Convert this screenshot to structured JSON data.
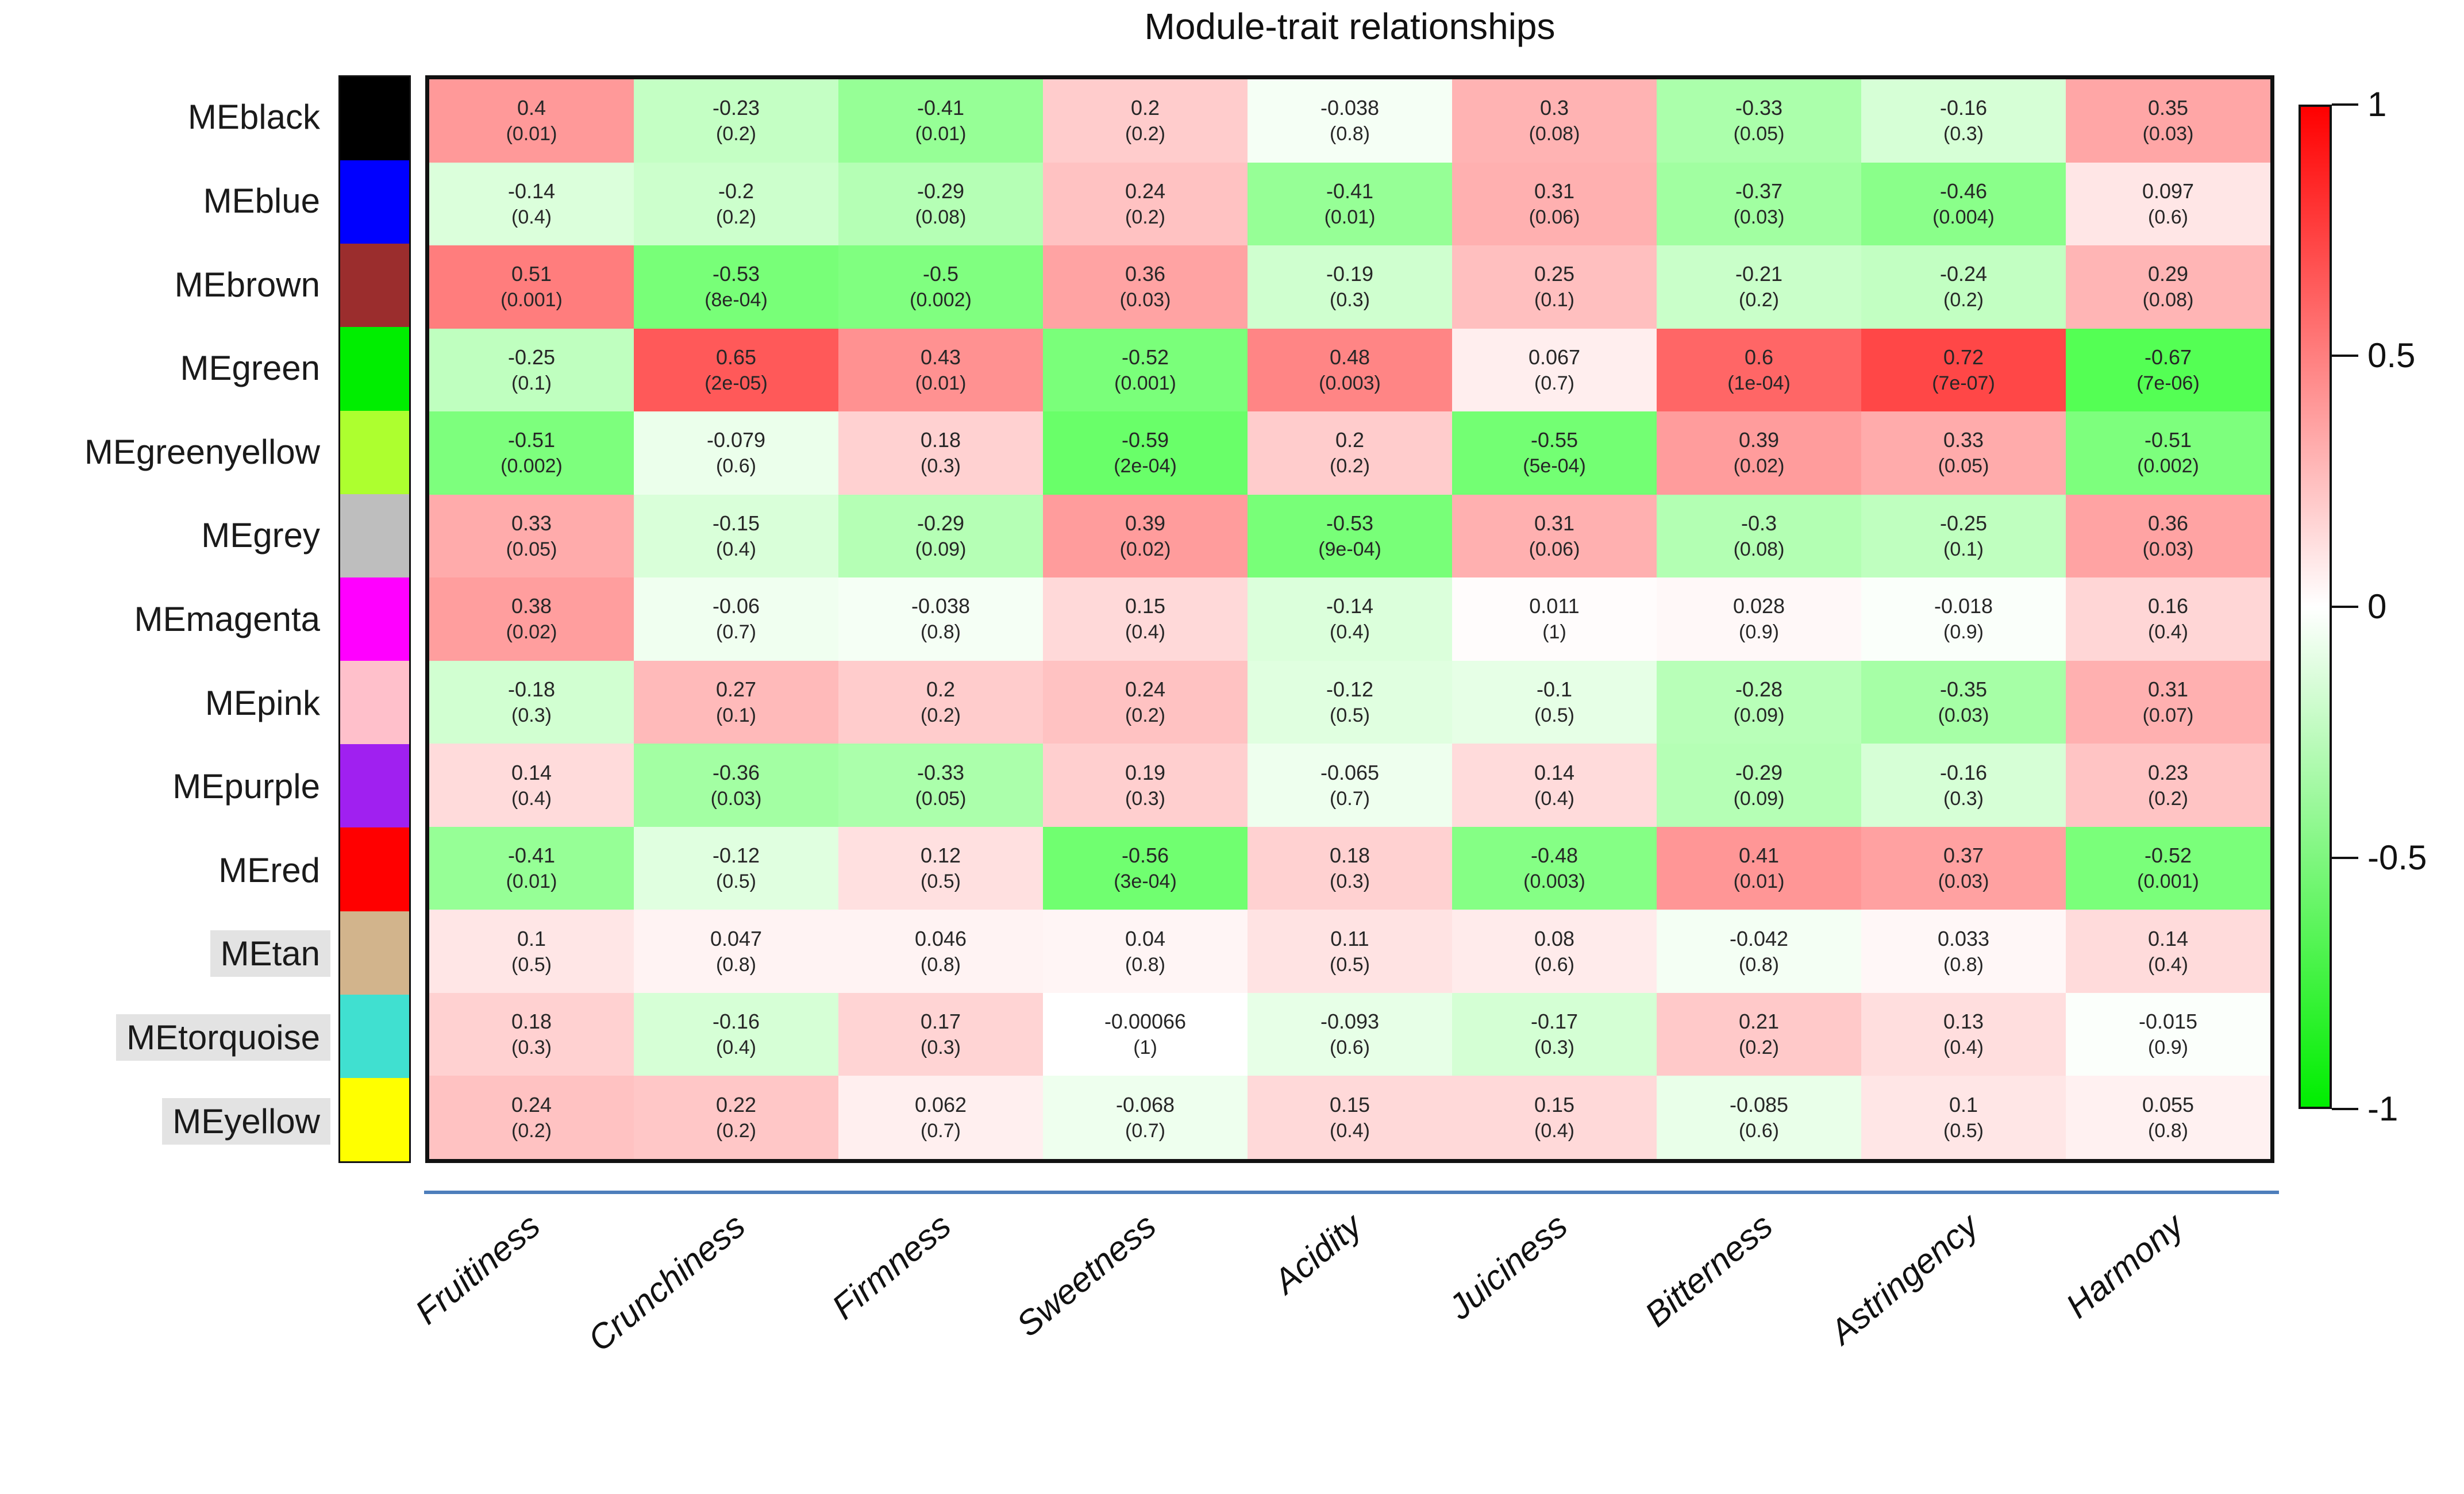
{
  "title": "Module-trait relationships",
  "colors": {
    "accent_line": "#4d7ebb",
    "grid_border": "#111111",
    "highlight_bg": "#e3e3e3",
    "cell_text": "#262626",
    "colorbar_top": "#ff0000",
    "colorbar_mid": "#ffffff",
    "colorbar_bottom": "#00ee00"
  },
  "chart_data": {
    "type": "heatmap",
    "title": "Module-trait relationships",
    "color_scale": "green-white-red",
    "value_range": [
      -1,
      1
    ],
    "x_categories": [
      "Fruitiness",
      "Crunchiness",
      "Firmness",
      "Sweetness",
      "Acidity",
      "Juiciness",
      "Bitterness",
      "Astringency",
      "Harmony"
    ],
    "rows": [
      {
        "label": "MEblack",
        "swatch": "#000000",
        "highlighted": false,
        "values": [
          "0.4",
          "-0.23",
          "-0.41",
          "0.2",
          "-0.038",
          "0.3",
          "-0.33",
          "-0.16",
          "0.35"
        ],
        "pvalues": [
          "0.01",
          "0.2",
          "0.01",
          "0.2",
          "0.8",
          "0.08",
          "0.05",
          "0.3",
          "0.03"
        ]
      },
      {
        "label": "MEblue",
        "swatch": "#0000ff",
        "highlighted": false,
        "values": [
          "-0.14",
          "-0.2",
          "-0.29",
          "0.24",
          "-0.41",
          "0.31",
          "-0.37",
          "-0.46",
          "0.097"
        ],
        "pvalues": [
          "0.4",
          "0.2",
          "0.08",
          "0.2",
          "0.01",
          "0.06",
          "0.03",
          "0.004",
          "0.6"
        ]
      },
      {
        "label": "MEbrown",
        "swatch": "#9b2d2d",
        "highlighted": false,
        "values": [
          "0.51",
          "-0.53",
          "-0.5",
          "0.36",
          "-0.19",
          "0.25",
          "-0.21",
          "-0.24",
          "0.29"
        ],
        "pvalues": [
          "0.001",
          "8e-04",
          "0.002",
          "0.03",
          "0.3",
          "0.1",
          "0.2",
          "0.2",
          "0.08"
        ]
      },
      {
        "label": "MEgreen",
        "swatch": "#00ee00",
        "highlighted": false,
        "values": [
          "-0.25",
          "0.65",
          "0.43",
          "-0.52",
          "0.48",
          "0.067",
          "0.6",
          "0.72",
          "-0.67"
        ],
        "pvalues": [
          "0.1",
          "2e-05",
          "0.01",
          "0.001",
          "0.003",
          "0.7",
          "1e-04",
          "7e-07",
          "7e-06"
        ]
      },
      {
        "label": "MEgreenyellow",
        "swatch": "#adff2f",
        "highlighted": false,
        "values": [
          "-0.51",
          "-0.079",
          "0.18",
          "-0.59",
          "0.2",
          "-0.55",
          "0.39",
          "0.33",
          "-0.51"
        ],
        "pvalues": [
          "0.002",
          "0.6",
          "0.3",
          "2e-04",
          "0.2",
          "5e-04",
          "0.02",
          "0.05",
          "0.002"
        ]
      },
      {
        "label": "MEgrey",
        "swatch": "#bebebe",
        "highlighted": false,
        "values": [
          "0.33",
          "-0.15",
          "-0.29",
          "0.39",
          "-0.53",
          "0.31",
          "-0.3",
          "-0.25",
          "0.36"
        ],
        "pvalues": [
          "0.05",
          "0.4",
          "0.09",
          "0.02",
          "9e-04",
          "0.06",
          "0.08",
          "0.1",
          "0.03"
        ]
      },
      {
        "label": "MEmagenta",
        "swatch": "#ff00ff",
        "highlighted": false,
        "values": [
          "0.38",
          "-0.06",
          "-0.038",
          "0.15",
          "-0.14",
          "0.011",
          "0.028",
          "-0.018",
          "0.16"
        ],
        "pvalues": [
          "0.02",
          "0.7",
          "0.8",
          "0.4",
          "0.4",
          "1",
          "0.9",
          "0.9",
          "0.4"
        ]
      },
      {
        "label": "MEpink",
        "swatch": "#ffc0cb",
        "highlighted": false,
        "values": [
          "-0.18",
          "0.27",
          "0.2",
          "0.24",
          "-0.12",
          "-0.1",
          "-0.28",
          "-0.35",
          "0.31"
        ],
        "pvalues": [
          "0.3",
          "0.1",
          "0.2",
          "0.2",
          "0.5",
          "0.5",
          "0.09",
          "0.03",
          "0.07"
        ]
      },
      {
        "label": "MEpurple",
        "swatch": "#a020f0",
        "highlighted": false,
        "values": [
          "0.14",
          "-0.36",
          "-0.33",
          "0.19",
          "-0.065",
          "0.14",
          "-0.29",
          "-0.16",
          "0.23"
        ],
        "pvalues": [
          "0.4",
          "0.03",
          "0.05",
          "0.3",
          "0.7",
          "0.4",
          "0.09",
          "0.3",
          "0.2"
        ]
      },
      {
        "label": "MEred",
        "swatch": "#ff0000",
        "highlighted": false,
        "values": [
          "-0.41",
          "-0.12",
          "0.12",
          "-0.56",
          "0.18",
          "-0.48",
          "0.41",
          "0.37",
          "-0.52"
        ],
        "pvalues": [
          "0.01",
          "0.5",
          "0.5",
          "3e-04",
          "0.3",
          "0.003",
          "0.01",
          "0.03",
          "0.001"
        ]
      },
      {
        "label": "MEtan",
        "swatch": "#d2b48c",
        "highlighted": true,
        "values": [
          "0.1",
          "0.047",
          "0.046",
          "0.04",
          "0.11",
          "0.08",
          "-0.042",
          "0.033",
          "0.14"
        ],
        "pvalues": [
          "0.5",
          "0.8",
          "0.8",
          "0.8",
          "0.5",
          "0.6",
          "0.8",
          "0.8",
          "0.4"
        ]
      },
      {
        "label": "MEtorquoise",
        "swatch": "#40e0d0",
        "highlighted": true,
        "values": [
          "0.18",
          "-0.16",
          "0.17",
          "-0.00066",
          "-0.093",
          "-0.17",
          "0.21",
          "0.13",
          "-0.015"
        ],
        "pvalues": [
          "0.3",
          "0.4",
          "0.3",
          "1",
          "0.6",
          "0.3",
          "0.2",
          "0.4",
          "0.9"
        ]
      },
      {
        "label": "MEyellow",
        "swatch": "#ffff00",
        "highlighted": true,
        "values": [
          "0.24",
          "0.22",
          "0.062",
          "-0.068",
          "0.15",
          "0.15",
          "-0.085",
          "0.1",
          "0.055"
        ],
        "pvalues": [
          "0.2",
          "0.2",
          "0.7",
          "0.7",
          "0.4",
          "0.4",
          "0.6",
          "0.5",
          "0.8"
        ]
      }
    ],
    "colorbar": {
      "ticks": [
        {
          "label": "1",
          "value": 1
        },
        {
          "label": "0.5",
          "value": 0.5
        },
        {
          "label": "0",
          "value": 0
        },
        {
          "label": "-0.5",
          "value": -0.5
        },
        {
          "label": "-1",
          "value": -1
        }
      ],
      "legend_position": "right"
    }
  }
}
